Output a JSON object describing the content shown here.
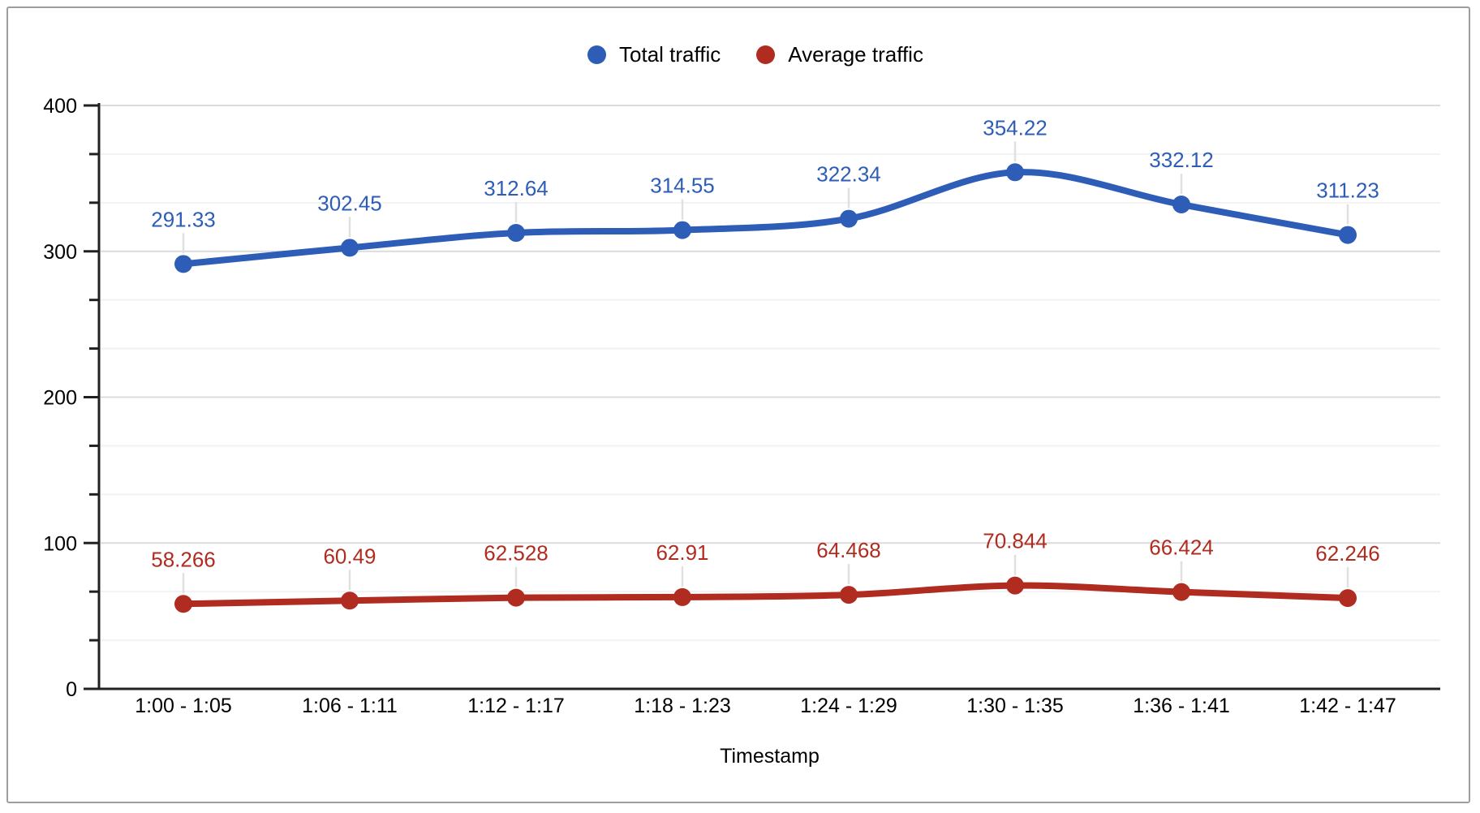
{
  "chart_data": {
    "type": "line",
    "curve": "smooth",
    "title": "",
    "xlabel": "Timestamp",
    "ylabel": "",
    "categories": [
      "1:00 - 1:05",
      "1:06 - 1:11",
      "1:12 - 1:17",
      "1:18 - 1:23",
      "1:24 - 1:29",
      "1:30 - 1:35",
      "1:36 - 1:41",
      "1:42 - 1:47"
    ],
    "series": [
      {
        "name": "Total traffic",
        "color": "#2D5DB7",
        "values": [
          291.33,
          302.45,
          312.64,
          314.55,
          322.34,
          354.22,
          332.12,
          311.23
        ],
        "point_labels": [
          "291.33",
          "302.45",
          "312.64",
          "314.55",
          "322.34",
          "354.22",
          "332.12",
          "311.23"
        ]
      },
      {
        "name": "Average traffic",
        "color": "#B02C20",
        "values": [
          58.266,
          60.49,
          62.528,
          62.91,
          64.468,
          70.844,
          66.424,
          62.246
        ],
        "point_labels": [
          "58.266",
          "60.49",
          "62.528",
          "62.91",
          "64.468",
          "70.844",
          "66.424",
          "62.246"
        ]
      }
    ],
    "y_axis": {
      "min": 0,
      "max": 400,
      "major_tick_labels": [
        "0",
        "100",
        "200",
        "300",
        "400"
      ],
      "major_ticks": [
        0,
        100,
        200,
        300,
        400
      ],
      "minor_tick_step": 33.3333
    },
    "grid": true,
    "legend_position": "top",
    "colors": {
      "axis_line": "#212121",
      "tick_label": "#000000",
      "major_gridline": "#dcdcdc",
      "minor_gridline": "#f2f2f2",
      "leader_line": "#e0e0e0",
      "card_border": "#9e9e9e",
      "background": "#ffffff"
    }
  }
}
